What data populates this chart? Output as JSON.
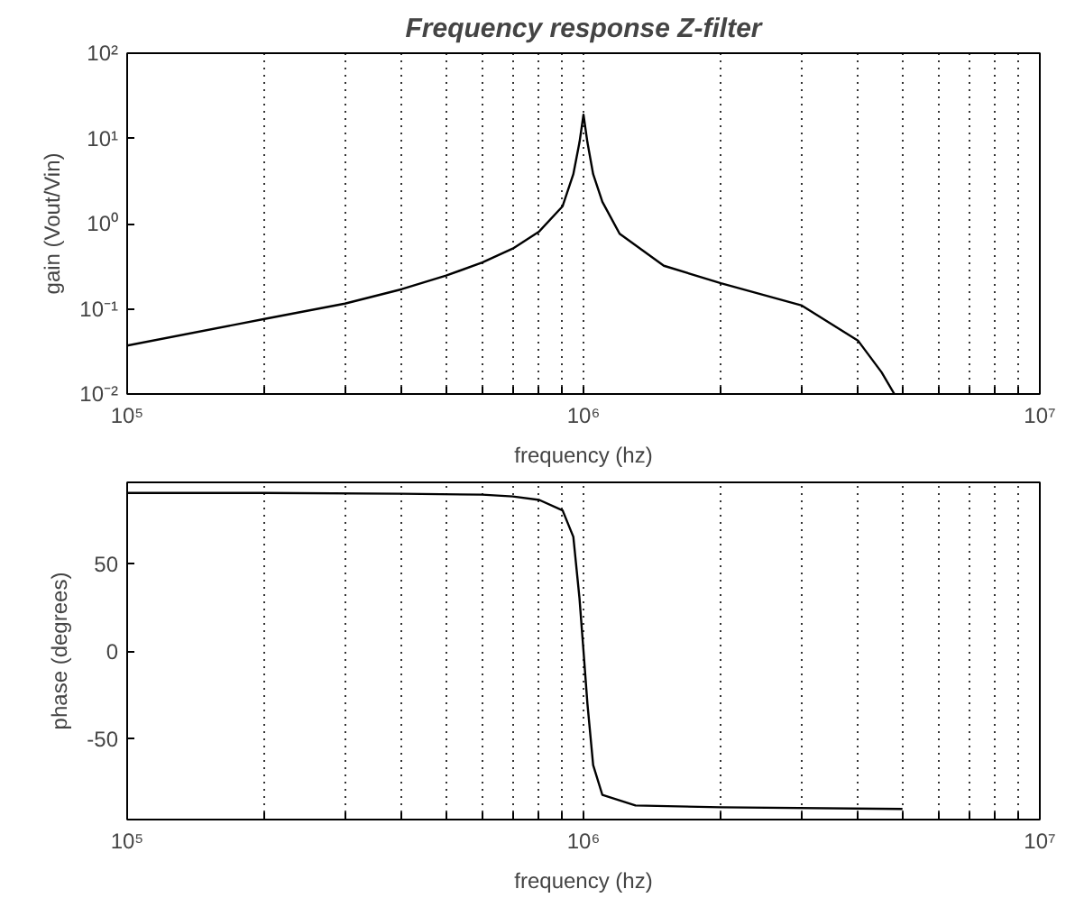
{
  "chart_data": [
    {
      "type": "line",
      "title": "Frequency response Z-filter",
      "xlabel": "frequency (hz)",
      "ylabel": "gain (Vout/Vin)",
      "log": "xy",
      "grid": "x",
      "xlim": [
        100000,
        10000000
      ],
      "ylim": [
        0.01,
        100
      ],
      "xticks": [
        {
          "value": 100000,
          "label": "10⁵"
        },
        {
          "value": 200000,
          "label": null
        },
        {
          "value": 300000,
          "label": null
        },
        {
          "value": 400000,
          "label": null
        },
        {
          "value": 500000,
          "label": null
        },
        {
          "value": 600000,
          "label": null
        },
        {
          "value": 700000,
          "label": null
        },
        {
          "value": 800000,
          "label": null
        },
        {
          "value": 900000,
          "label": null
        },
        {
          "value": 1000000,
          "label": "10⁶"
        },
        {
          "value": 2000000,
          "label": null
        },
        {
          "value": 3000000,
          "label": null
        },
        {
          "value": 4000000,
          "label": null
        },
        {
          "value": 5000000,
          "label": null
        },
        {
          "value": 6000000,
          "label": null
        },
        {
          "value": 7000000,
          "label": null
        },
        {
          "value": 8000000,
          "label": null
        },
        {
          "value": 9000000,
          "label": null
        },
        {
          "value": 10000000,
          "label": "10⁷"
        }
      ],
      "yticks": [
        {
          "value": 0.01,
          "label": "10⁻²"
        },
        {
          "value": 0.1,
          "label": "10⁻¹"
        },
        {
          "value": 1,
          "label": "10⁰"
        },
        {
          "value": 10,
          "label": "10¹"
        },
        {
          "value": 100,
          "label": "10²"
        }
      ],
      "x": [
        100000,
        200000,
        300000,
        400000,
        500000,
        600000,
        700000,
        800000,
        900000,
        950000,
        980000,
        1000000,
        1020000,
        1050000,
        1100000,
        1200000,
        1500000,
        2000000,
        3000000,
        4000000,
        4500000,
        4800000
      ],
      "series": [
        {
          "color": "#000000",
          "values": [
            0.037,
            0.076,
            0.115,
            0.17,
            0.245,
            0.35,
            0.51,
            0.81,
            1.6,
            3.8,
            9,
            19,
            9,
            3.8,
            1.8,
            0.76,
            0.32,
            0.2,
            0.11,
            0.042,
            0.018,
            0.01
          ]
        }
      ]
    },
    {
      "type": "line",
      "xlabel": "frequency (hz)",
      "ylabel": "phase (degrees)",
      "log": "x",
      "grid": "x",
      "xlim": [
        100000,
        10000000
      ],
      "ylim": [
        -96,
        96
      ],
      "xticks": [
        {
          "value": 100000,
          "label": "10⁵"
        },
        {
          "value": 200000,
          "label": null
        },
        {
          "value": 300000,
          "label": null
        },
        {
          "value": 400000,
          "label": null
        },
        {
          "value": 500000,
          "label": null
        },
        {
          "value": 600000,
          "label": null
        },
        {
          "value": 700000,
          "label": null
        },
        {
          "value": 800000,
          "label": null
        },
        {
          "value": 900000,
          "label": null
        },
        {
          "value": 1000000,
          "label": "10⁶"
        },
        {
          "value": 2000000,
          "label": null
        },
        {
          "value": 3000000,
          "label": null
        },
        {
          "value": 4000000,
          "label": null
        },
        {
          "value": 5000000,
          "label": null
        },
        {
          "value": 6000000,
          "label": null
        },
        {
          "value": 7000000,
          "label": null
        },
        {
          "value": 8000000,
          "label": null
        },
        {
          "value": 9000000,
          "label": null
        },
        {
          "value": 10000000,
          "label": "10⁷"
        }
      ],
      "yticks": [
        -50,
        0,
        50
      ],
      "x": [
        100000,
        200000,
        400000,
        600000,
        700000,
        800000,
        900000,
        950000,
        980000,
        1000000,
        1020000,
        1050000,
        1100000,
        1300000,
        2000000,
        5000000
      ],
      "series": [
        {
          "color": "#000000",
          "values": [
            90,
            90,
            89.5,
            89,
            88,
            86,
            80,
            65,
            30,
            0,
            -30,
            -65,
            -82,
            -88,
            -89,
            -90
          ]
        }
      ]
    }
  ]
}
